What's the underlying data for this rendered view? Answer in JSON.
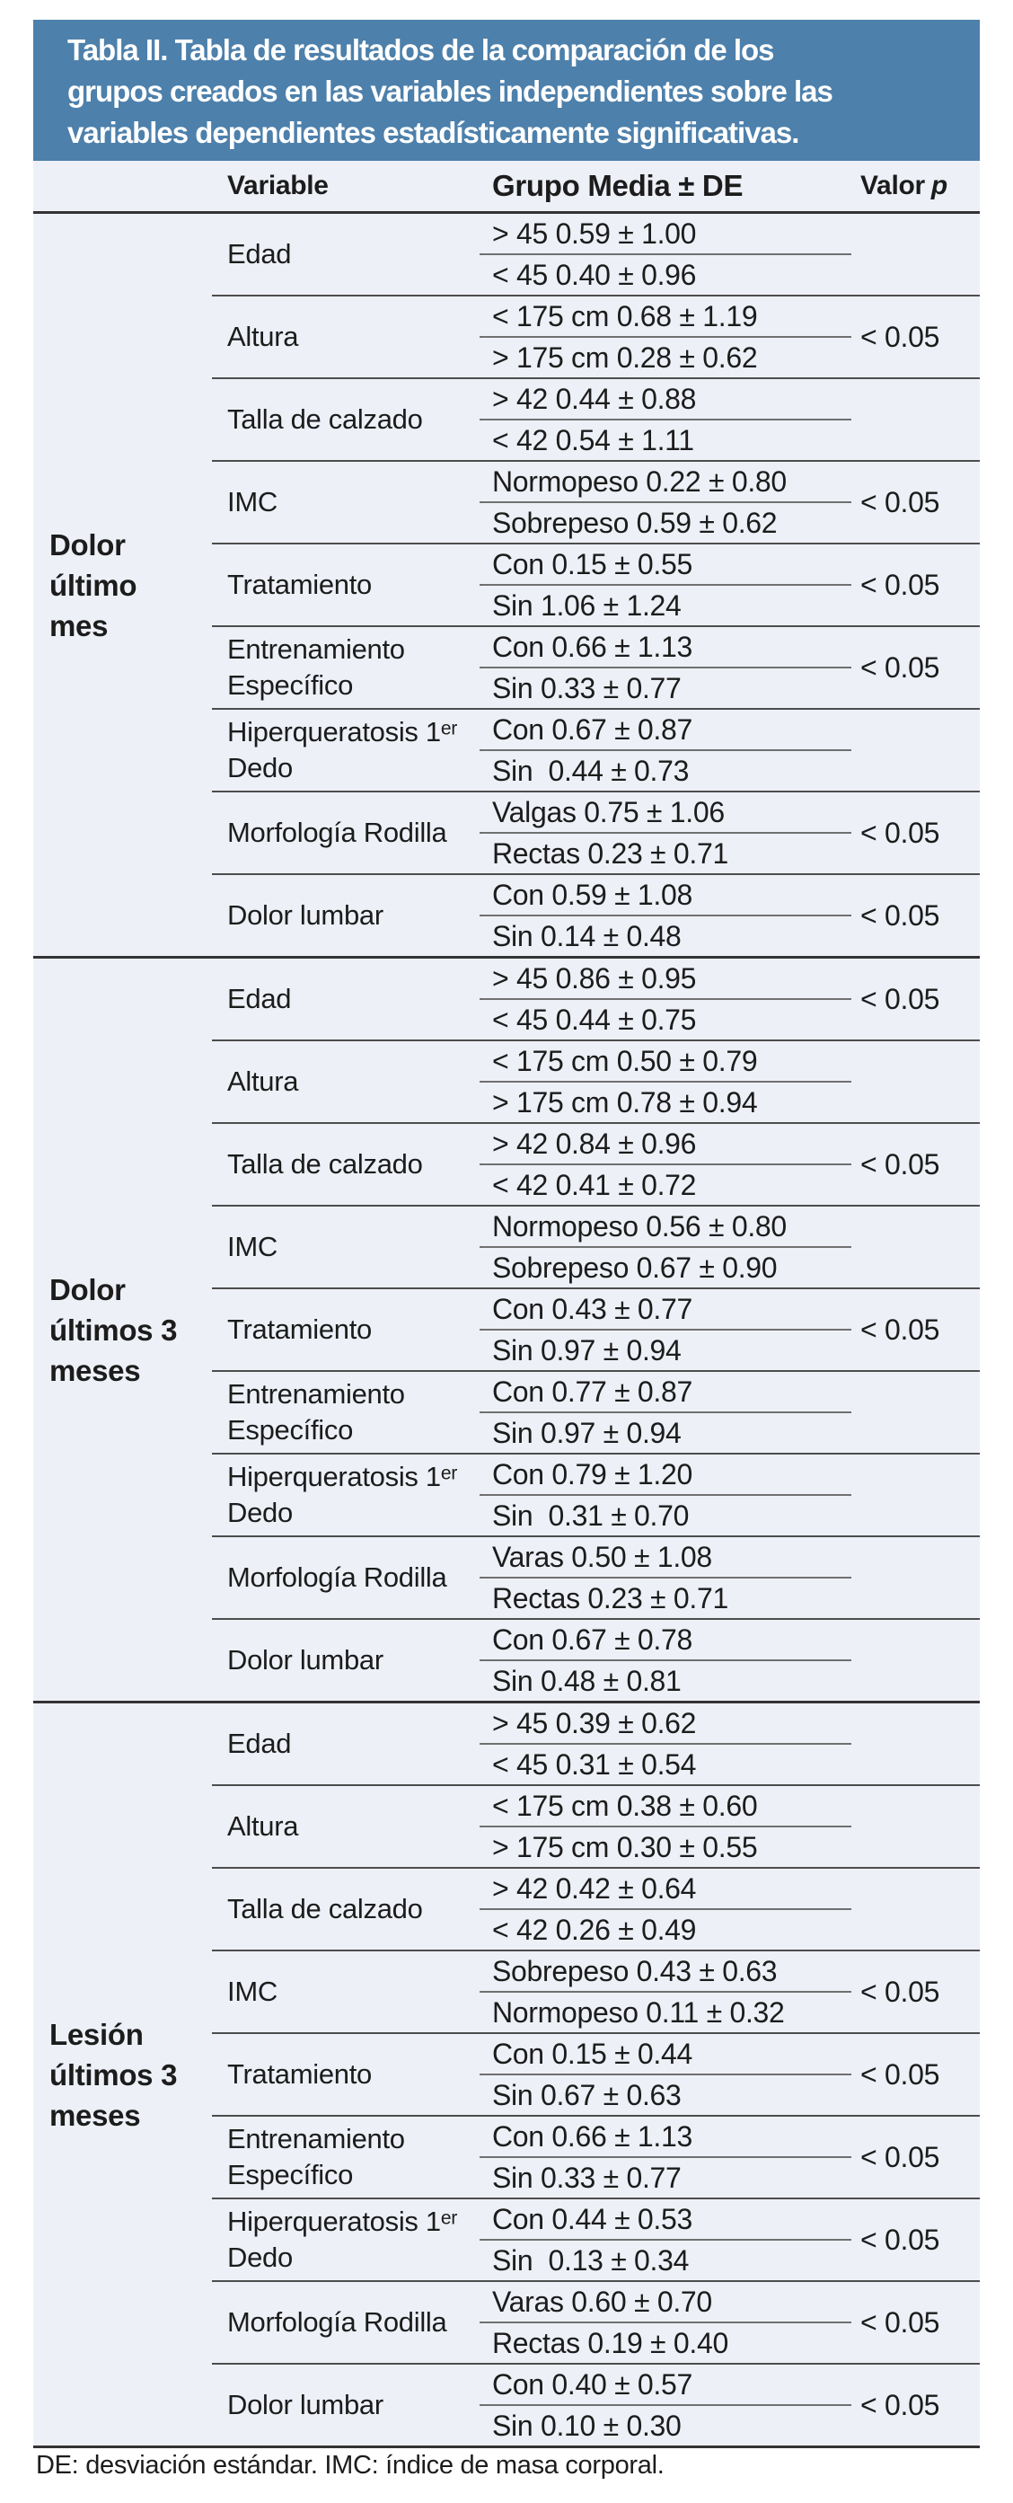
{
  "table": {
    "title_lines": [
      "Tabla II. Tabla de resultados de la comparación de los",
      "grupos creados en las variables independientes sobre las",
      "variables dependientes estadísticamente significativas."
    ],
    "columns": {
      "variable": "Variable",
      "grupo": "Grupo Media ± DE",
      "valor_prefix": "Valor",
      "valor_p": "p"
    },
    "footnote": "DE: desviación estándar. IMC: índice de masa corporal.",
    "accent_color": "#4d80ab",
    "body_color": "#edf0f7",
    "sections": [
      {
        "label": "Dolor último mes",
        "rows": [
          {
            "variable": "Edad",
            "group1": "> 45 0.59 ± 1.00",
            "group2": "< 45 0.40 ± 0.96",
            "p": ""
          },
          {
            "variable": "Altura",
            "group1": "< 175 cm 0.68 ± 1.19",
            "group2": "> 175 cm 0.28 ± 0.62",
            "p": "< 0.05"
          },
          {
            "variable": "Talla de calzado",
            "group1": "> 42 0.44 ± 0.88",
            "group2": "< 42 0.54 ± 1.11",
            "p": ""
          },
          {
            "variable": "IMC",
            "group1": "Normopeso 0.22 ± 0.80",
            "group2": "Sobrepeso 0.59 ± 0.62",
            "p": "< 0.05"
          },
          {
            "variable": "Tratamiento",
            "group1": "Con 0.15 ± 0.55",
            "group2": "Sin 1.06 ± 1.24",
            "p": "< 0.05"
          },
          {
            "variable": "Entrenamiento Específico",
            "group1": "Con 0.66 ± 1.13",
            "group2": "Sin 0.33 ± 0.77",
            "p": "< 0.05"
          },
          {
            "variable": "Hiperqueratosis 1ᵉʳ Dedo",
            "group1": "Con 0.67 ± 0.87",
            "group2": "Sin  0.44 ± 0.73",
            "p": ""
          },
          {
            "variable": "Morfología Rodilla",
            "group1": "Valgas 0.75 ± 1.06",
            "group2": "Rectas 0.23 ± 0.71",
            "p": "< 0.05"
          },
          {
            "variable": "Dolor lumbar",
            "group1": "Con 0.59 ± 1.08",
            "group2": "Sin 0.14 ± 0.48",
            "p": "< 0.05"
          }
        ]
      },
      {
        "label": "Dolor últimos 3 meses",
        "rows": [
          {
            "variable": "Edad",
            "group1": "> 45 0.86 ± 0.95",
            "group2": "< 45 0.44 ± 0.75",
            "p": "< 0.05"
          },
          {
            "variable": "Altura",
            "group1": "< 175 cm 0.50 ± 0.79",
            "group2": "> 175 cm 0.78 ± 0.94",
            "p": ""
          },
          {
            "variable": "Talla de calzado",
            "group1": "> 42 0.84 ± 0.96",
            "group2": "< 42 0.41 ± 0.72",
            "p": "< 0.05"
          },
          {
            "variable": "IMC",
            "group1": "Normopeso 0.56 ± 0.80",
            "group2": "Sobrepeso 0.67 ± 0.90",
            "p": ""
          },
          {
            "variable": "Tratamiento",
            "group1": "Con 0.43 ± 0.77",
            "group2": "Sin 0.97 ± 0.94",
            "p": "< 0.05"
          },
          {
            "variable": "Entrenamiento Específico",
            "group1": "Con 0.77 ± 0.87",
            "group2": "Sin 0.97 ± 0.94",
            "p": ""
          },
          {
            "variable": "Hiperqueratosis 1ᵉʳ Dedo",
            "group1": "Con 0.79 ± 1.20",
            "group2": "Sin  0.31 ± 0.70",
            "p": ""
          },
          {
            "variable": "Morfología Rodilla",
            "group1": "Varas 0.50 ± 1.08",
            "group2": "Rectas 0.23 ± 0.71",
            "p": ""
          },
          {
            "variable": "Dolor lumbar",
            "group1": "Con 0.67 ± 0.78",
            "group2": "Sin 0.48 ± 0.81",
            "p": ""
          }
        ]
      },
      {
        "label": "Lesión últimos 3 meses",
        "rows": [
          {
            "variable": "Edad",
            "group1": "> 45 0.39 ± 0.62",
            "group2": "< 45 0.31 ± 0.54",
            "p": ""
          },
          {
            "variable": "Altura",
            "group1": "< 175 cm 0.38 ± 0.60",
            "group2": "> 175 cm 0.30 ± 0.55",
            "p": ""
          },
          {
            "variable": "Talla de calzado",
            "group1": "> 42 0.42 ± 0.64",
            "group2": "< 42 0.26 ± 0.49",
            "p": ""
          },
          {
            "variable": "IMC",
            "group1": "Sobrepeso 0.43 ± 0.63",
            "group2": "Normopeso 0.11 ± 0.32",
            "p": "< 0.05"
          },
          {
            "variable": "Tratamiento",
            "group1": "Con 0.15 ± 0.44",
            "group2": "Sin 0.67 ± 0.63",
            "p": "< 0.05"
          },
          {
            "variable": "Entrenamiento Específico",
            "group1": "Con 0.66 ± 1.13",
            "group2": "Sin 0.33 ± 0.77",
            "p": "< 0.05"
          },
          {
            "variable": "Hiperqueratosis 1ᵉʳ Dedo",
            "group1": "Con 0.44 ± 0.53",
            "group2": "Sin  0.13 ± 0.34",
            "p": "< 0.05"
          },
          {
            "variable": "Morfología Rodilla",
            "group1": "Varas 0.60 ± 0.70",
            "group2": "Rectas 0.19 ± 0.40",
            "p": "< 0.05"
          },
          {
            "variable": "Dolor lumbar",
            "group1": "Con 0.40 ± 0.57",
            "group2": "Sin 0.10 ± 0.30",
            "p": "< 0.05"
          }
        ]
      }
    ]
  }
}
